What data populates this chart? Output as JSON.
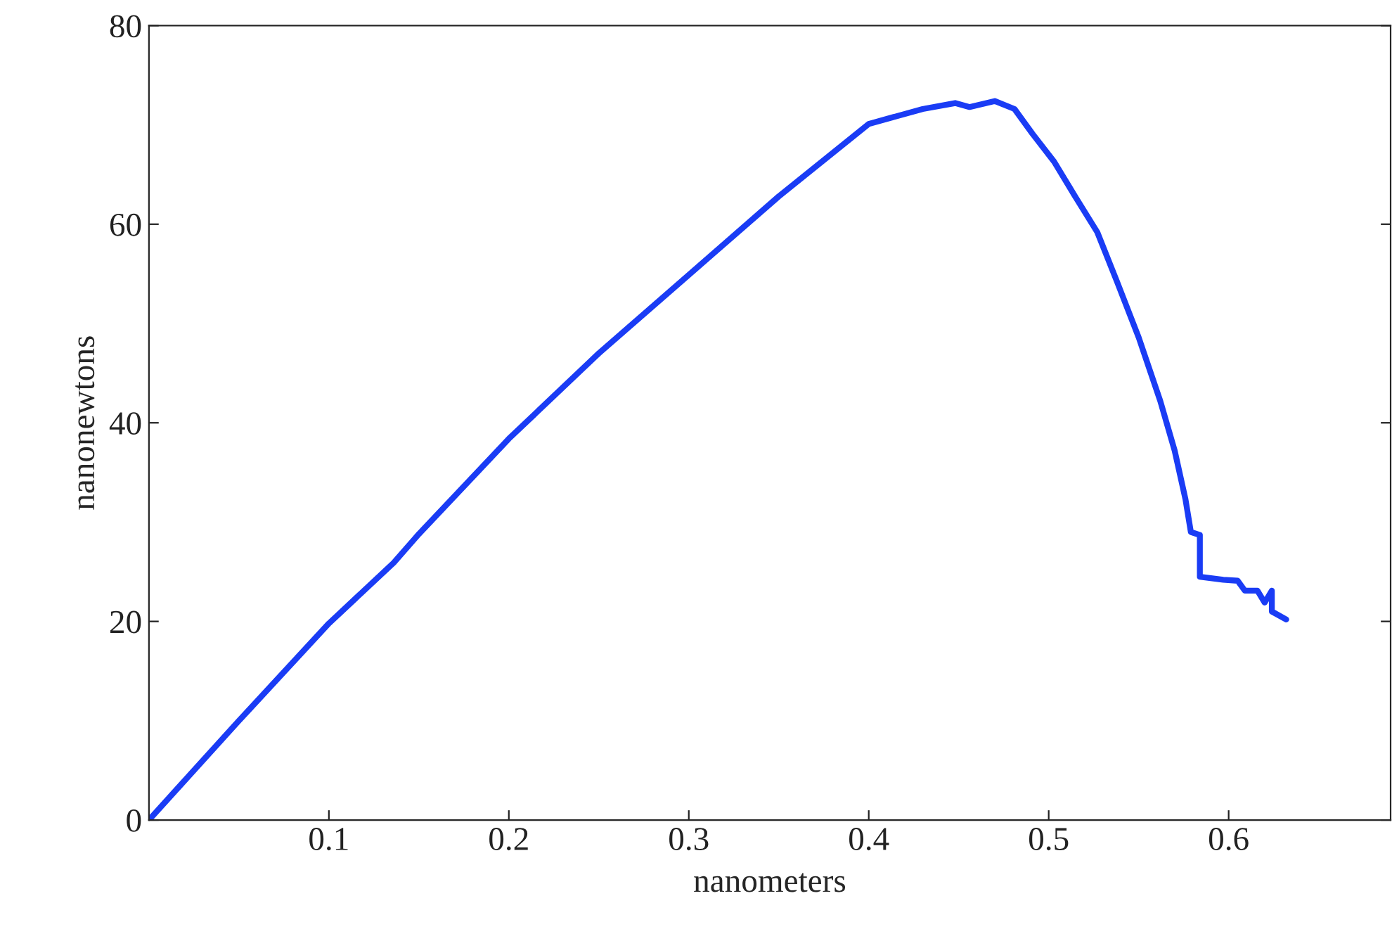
{
  "chart_data": {
    "type": "line",
    "xlabel": "nanometers",
    "ylabel": "nanonewtons",
    "x": [
      0,
      0.05,
      0.1,
      0.136,
      0.15,
      0.2,
      0.25,
      0.3,
      0.35,
      0.4,
      0.43,
      0.448,
      0.456,
      0.47,
      0.481,
      0.491,
      0.503,
      0.515,
      0.527,
      0.538,
      0.55,
      0.562,
      0.57,
      0.576,
      0.579,
      0.584,
      0.584,
      0.597,
      0.605,
      0.609,
      0.616,
      0.62,
      0.624,
      0.624,
      0.632
    ],
    "series": [
      {
        "color": "#1a3cf5",
        "values": [
          0,
          10,
          19.8,
          25.9,
          28.8,
          38.4,
          47,
          54.9,
          62.8,
          70.1,
          71.6,
          72.2,
          71.8,
          72.4,
          71.6,
          69.1,
          66.3,
          62.7,
          59.2,
          54.2,
          48.6,
          42.2,
          37.2,
          32.3,
          29,
          28.7,
          24.5,
          24.2,
          24.1,
          23.1,
          23.1,
          21.9,
          23.1,
          21,
          20.2
        ]
      }
    ],
    "xlim": [
      0,
      0.69
    ],
    "xticks": [
      0.1,
      0.2,
      0.3,
      0.4,
      0.5,
      0.6
    ],
    "ylim": [
      0,
      80
    ],
    "yticks": [
      0,
      20,
      40,
      60,
      80
    ],
    "grid": false,
    "legend": false,
    "marker": "none",
    "line_style": "solid"
  }
}
